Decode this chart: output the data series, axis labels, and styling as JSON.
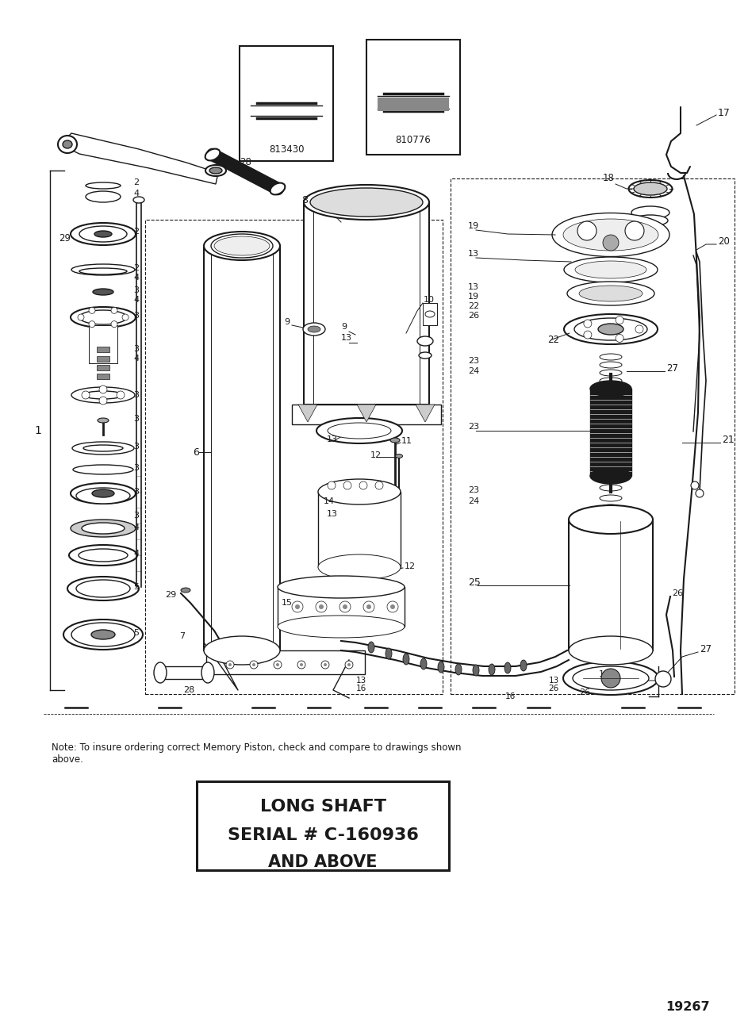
{
  "bg_color": "#ffffff",
  "fig_width": 9.43,
  "fig_height": 12.96,
  "title_line1": "LONG SHAFT",
  "title_line2": "SERIAL # C-160936",
  "title_line3": "AND ABOVE",
  "note_text": "Note: To insure ordering correct Memory Piston, check and compare to drawings shown\nabove.",
  "part_number": "19267",
  "ref_num1": "813430",
  "ref_num2": "810776",
  "dpi": 100
}
